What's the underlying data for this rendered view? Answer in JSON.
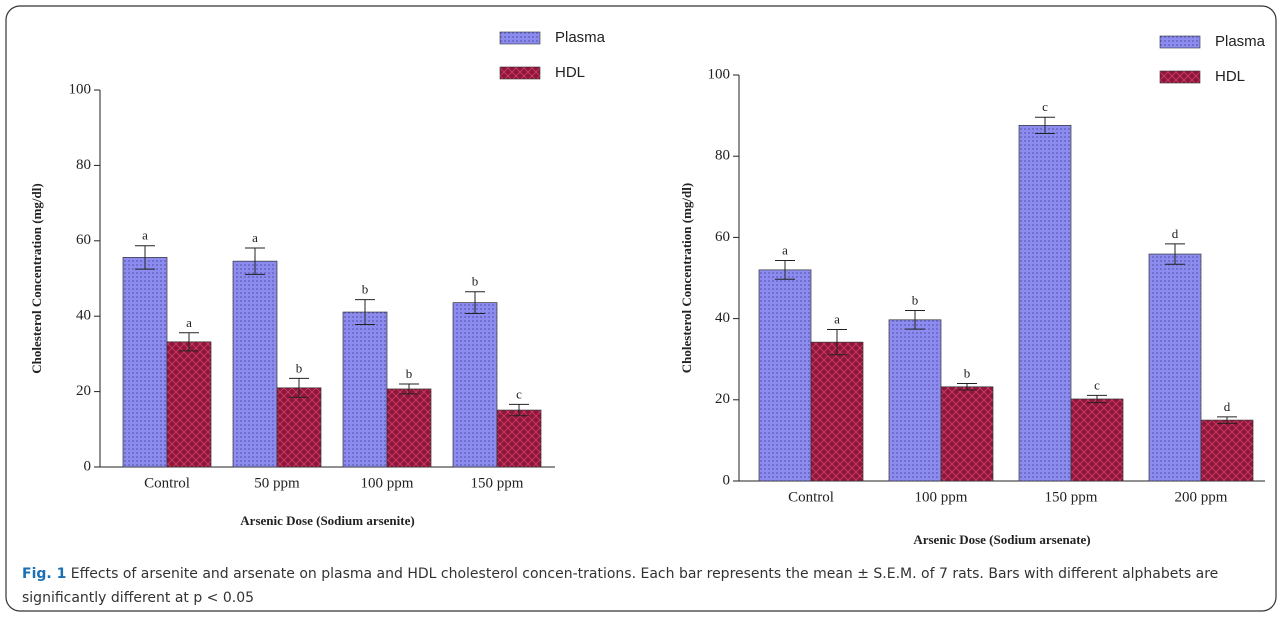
{
  "chart_data": [
    {
      "type": "bar",
      "x_label": "Arsenic Dose (Sodium arsenite)",
      "y_label": "Cholesterol Concentration (mg/dl)",
      "categories": [
        "Control",
        "50 ppm",
        "100 ppm",
        "150 ppm"
      ],
      "series": [
        {
          "name": "Plasma",
          "color": "#8c8cf0",
          "values": [
            55.6,
            54.6,
            41.1,
            43.6
          ],
          "errors": [
            3.1,
            3.5,
            3.3,
            2.9
          ],
          "significance": [
            "a",
            "a",
            "b",
            "b"
          ]
        },
        {
          "name": "HDL",
          "color": "#8e1838",
          "values": [
            33.2,
            21.0,
            20.7,
            15.1
          ],
          "errors": [
            2.4,
            2.5,
            1.3,
            1.5
          ],
          "significance": [
            "a",
            "b",
            "b",
            "c"
          ]
        }
      ],
      "ylim": [
        0,
        100
      ],
      "yticks": [
        0,
        20,
        40,
        60,
        80,
        100
      ],
      "legend": "top-center"
    },
    {
      "type": "bar",
      "x_label": "Arsenic Dose (Sodium arsenate)",
      "y_label": "Cholesterol Concentration (mg/dl)",
      "categories": [
        "Control",
        "100 ppm",
        "150 ppm",
        "200 ppm"
      ],
      "series": [
        {
          "name": "Plasma",
          "color": "#8c8cf0",
          "values": [
            52.0,
            39.7,
            87.6,
            55.9
          ],
          "errors": [
            2.3,
            2.3,
            2.0,
            2.5
          ],
          "significance": [
            "a",
            "b",
            "c",
            "d"
          ]
        },
        {
          "name": "HDL",
          "color": "#8e1838",
          "values": [
            34.2,
            23.2,
            20.2,
            15.0
          ],
          "errors": [
            3.1,
            0.8,
            0.9,
            0.8
          ],
          "significance": [
            "a",
            "b",
            "c",
            "d"
          ]
        }
      ],
      "ylim": [
        0,
        100
      ],
      "yticks": [
        0,
        20,
        40,
        60,
        80,
        100
      ],
      "legend": "top-right"
    }
  ],
  "caption": {
    "label": "Fig. 1",
    "text": "Effects of arsenite and arsenate on plasma and HDL cholesterol concen-trations. Each bar represents the mean ± S.E.M. of 7 rats. Bars with different alphabets are significantly different at p < 0.05"
  }
}
